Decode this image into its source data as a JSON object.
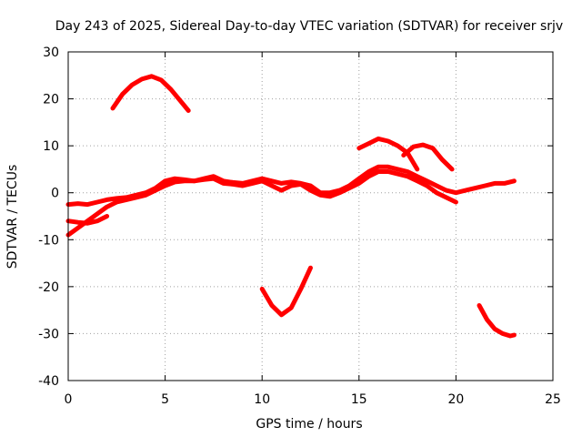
{
  "chart_data": {
    "type": "line",
    "title": "Day 243 of 2025, Sidereal Day-to-day VTEC variation (SDTVAR) for receiver srjv",
    "xlabel": "GPS time / hours",
    "ylabel": "SDTVAR / TECUs",
    "xlim": [
      0,
      25
    ],
    "ylim": [
      -40,
      30
    ],
    "xticks": [
      0,
      5,
      10,
      15,
      20,
      25
    ],
    "yticks": [
      -40,
      -30,
      -20,
      -10,
      0,
      10,
      20,
      30
    ],
    "grid": true,
    "color": "#ff0000",
    "series": [
      {
        "name": "main-band-upper",
        "x": [
          0,
          0.5,
          1,
          1.5,
          2,
          2.5,
          3,
          3.5,
          4,
          4.5,
          5,
          5.5,
          6,
          6.5,
          7,
          7.5,
          8,
          8.5,
          9,
          9.5,
          10,
          10.5,
          11,
          11.5,
          12,
          12.5,
          13,
          13.5,
          14,
          14.5,
          15,
          15.5,
          16,
          16.5,
          17,
          17.5,
          18,
          18.5,
          19,
          19.5,
          20,
          20.5,
          21,
          21.5,
          22,
          22.5,
          23
        ],
        "y": [
          -2.5,
          -2.3,
          -2.5,
          -2,
          -1.5,
          -1.2,
          -1,
          -0.5,
          0,
          1,
          2.5,
          3,
          2.8,
          2.5,
          3,
          3.5,
          2.5,
          2.2,
          2,
          2.5,
          3,
          2.5,
          2,
          2.3,
          2,
          1.5,
          0,
          0,
          0.5,
          1.5,
          3,
          4.5,
          5.5,
          5.5,
          5,
          4.5,
          3.5,
          2.5,
          1.5,
          0.5,
          0,
          0.5,
          1,
          1.5,
          2,
          2,
          2.5
        ]
      },
      {
        "name": "main-band-lower",
        "x": [
          0,
          0.5,
          1,
          1.5,
          2,
          2.5,
          3,
          3.5,
          4,
          4.5,
          5,
          5.5,
          6,
          6.5,
          7,
          7.5,
          8,
          8.5,
          9,
          9.5,
          10,
          10.5,
          11,
          11.5,
          12,
          12.5,
          13,
          13.5,
          14,
          14.5,
          15,
          15.5,
          16,
          16.5,
          17,
          17.5,
          18,
          18.5,
          19,
          19.5,
          20
        ],
        "y": [
          -9,
          -7.5,
          -6,
          -4.5,
          -3,
          -2,
          -1.5,
          -1,
          -0.5,
          0.5,
          1.5,
          2.3,
          2.5,
          2.5,
          2.8,
          3,
          2,
          1.8,
          1.5,
          2,
          2.5,
          1.5,
          0.5,
          1.5,
          1.8,
          0.5,
          -0.5,
          -0.8,
          0,
          1,
          2,
          3.5,
          4.5,
          4.5,
          4,
          3.5,
          2.5,
          1.5,
          0,
          -1,
          -2
        ]
      },
      {
        "name": "dip-trace",
        "x": [
          0,
          0.5,
          1,
          1.5,
          2
        ],
        "y": [
          -6,
          -6.3,
          -6.5,
          -6,
          -5
        ]
      },
      {
        "name": "arc-early",
        "x": [
          2.3,
          2.8,
          3.3,
          3.8,
          4.3,
          4.8,
          5.3,
          5.8,
          6.2
        ],
        "y": [
          18,
          21,
          23,
          24.2,
          24.8,
          24,
          22,
          19.5,
          17.5
        ]
      },
      {
        "name": "arc-midday",
        "x": [
          10,
          10.5,
          11,
          11.5,
          12,
          12.5
        ],
        "y": [
          -20.5,
          -24,
          -26,
          -24.5,
          -20.5,
          -16
        ]
      },
      {
        "name": "arc-afternoon-1",
        "x": [
          15,
          15.5,
          16,
          16.5,
          17,
          17.5,
          18
        ],
        "y": [
          9.5,
          10.5,
          11.5,
          11,
          10,
          8.5,
          5
        ]
      },
      {
        "name": "arc-afternoon-2",
        "x": [
          17.3,
          17.8,
          18.3,
          18.8,
          19.3,
          19.8
        ],
        "y": [
          8,
          9.8,
          10.2,
          9.5,
          7,
          5
        ]
      },
      {
        "name": "arc-evening",
        "x": [
          21.2,
          21.6,
          22,
          22.4,
          22.8,
          23
        ],
        "y": [
          -24,
          -27,
          -29,
          -30,
          -30.5,
          -30.3
        ]
      }
    ]
  }
}
